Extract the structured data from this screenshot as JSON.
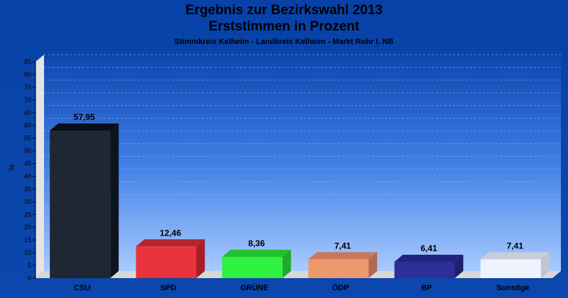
{
  "chart_data": {
    "type": "bar",
    "title": "Ergebnis zur Bezirkswahl 2013",
    "subtitle": "Erststimmen in Prozent",
    "subsubtitle": "Stimmkreis Kelheim - Landkreis Kelheim - Markt Rohr i. NB",
    "ylabel": "%",
    "xlabel": "",
    "ylim": [
      0,
      85
    ],
    "yticks": [
      0,
      5,
      10,
      15,
      20,
      25,
      30,
      35,
      40,
      45,
      50,
      55,
      60,
      65,
      70,
      75,
      80,
      85
    ],
    "grid": true,
    "categories": [
      "CSU",
      "SPD",
      "GRÜNE",
      "ÖDP",
      "BP",
      "Sonstige"
    ],
    "values": [
      57.95,
      12.46,
      8.36,
      7.41,
      6.41,
      7.41
    ],
    "value_labels": [
      "57,95",
      "12,46",
      "8,36",
      "7,41",
      "6,41",
      "7,41"
    ],
    "colors": [
      "#1f2733",
      "#e8323c",
      "#2ef23e",
      "#ee9870",
      "#2b2f96",
      "#eef3fe"
    ],
    "side_colors": [
      "#0e141c",
      "#a51f28",
      "#1eaa2a",
      "#b06a4e",
      "#1c1f6a",
      "#bfc6d3"
    ],
    "top_colors": [
      "#0a1018",
      "#b6242d",
      "#22c02f",
      "#c9785a",
      "#22257a",
      "#c8ceda"
    ]
  }
}
